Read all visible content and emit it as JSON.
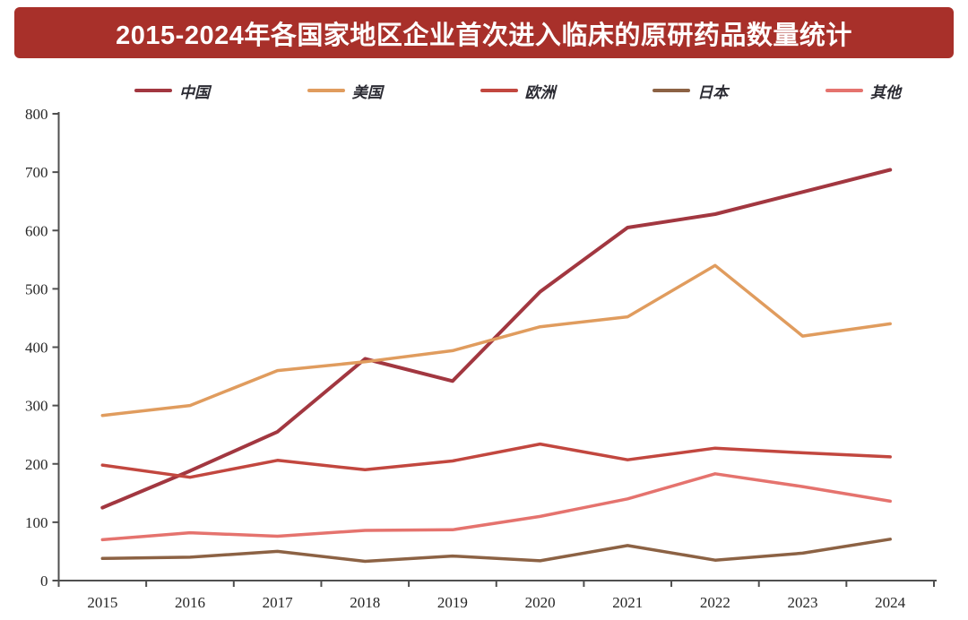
{
  "title": "2015-2024年各国家地区企业首次进入临床的原研药品数量统计",
  "title_bar_color": "#a8302a",
  "axis_color": "#4f4f4f",
  "chart_data": {
    "type": "line",
    "title": "2015-2024年各国家地区企业首次进入临床的原研药品数量统计",
    "x": [
      "2015",
      "2016",
      "2017",
      "2018",
      "2019",
      "2020",
      "2021",
      "2022",
      "2023",
      "2024"
    ],
    "series": [
      {
        "id": "china",
        "name": "中国",
        "color": "#a23740",
        "values": [
          125,
          188,
          255,
          380,
          342,
          495,
          605,
          628,
          666,
          704
        ]
      },
      {
        "id": "usa",
        "name": "美国",
        "color": "#e09c5e",
        "values": [
          283,
          300,
          360,
          375,
          394,
          435,
          452,
          540,
          419,
          440
        ]
      },
      {
        "id": "europe",
        "name": "欧洲",
        "color": "#c2473f",
        "values": [
          198,
          177,
          206,
          190,
          205,
          234,
          207,
          227,
          219,
          212
        ]
      },
      {
        "id": "japan",
        "name": "日本",
        "color": "#8c6244",
        "values": [
          38,
          40,
          50,
          33,
          42,
          34,
          60,
          35,
          47,
          71
        ]
      },
      {
        "id": "other",
        "name": "其他",
        "color": "#e5736e",
        "values": [
          70,
          82,
          76,
          86,
          87,
          110,
          140,
          183,
          161,
          136
        ]
      }
    ],
    "xlabel": "",
    "ylabel": "",
    "ylim": [
      0,
      800
    ],
    "yticks": [
      0,
      100,
      200,
      300,
      400,
      500,
      600,
      700,
      800
    ],
    "grid": false,
    "legend_position": "top"
  }
}
